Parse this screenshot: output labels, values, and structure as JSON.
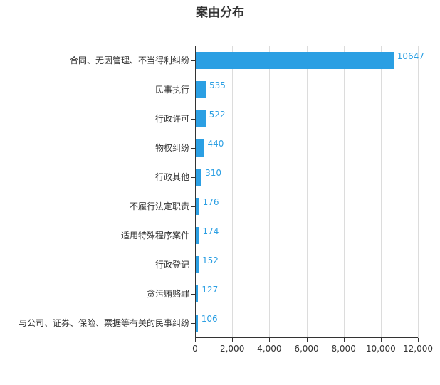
{
  "chart_data": {
    "type": "bar",
    "orientation": "horizontal",
    "title": "案由分布",
    "categories": [
      "合同、无因管理、不当得利纠纷",
      "民事执行",
      "行政许可",
      "物权纠纷",
      "行政其他",
      "不履行法定职责",
      "适用特殊程序案件",
      "行政登记",
      "贪污贿赂罪",
      "与公司、证券、保险、票据等有关的民事纠纷"
    ],
    "values": [
      10647,
      535,
      522,
      440,
      310,
      176,
      174,
      152,
      127,
      106
    ],
    "value_labels": [
      "10647",
      "535",
      "522",
      "440",
      "310",
      "176",
      "174",
      "152",
      "127",
      "106"
    ],
    "xlabel": "",
    "ylabel": "",
    "xlim": [
      0,
      12000
    ],
    "x_ticks": [
      "0",
      "2,000",
      "4,000",
      "6,000",
      "8,000",
      "10,000",
      "12,000"
    ],
    "grid": true,
    "legend": null,
    "bar_color": "#2b9fe3"
  }
}
